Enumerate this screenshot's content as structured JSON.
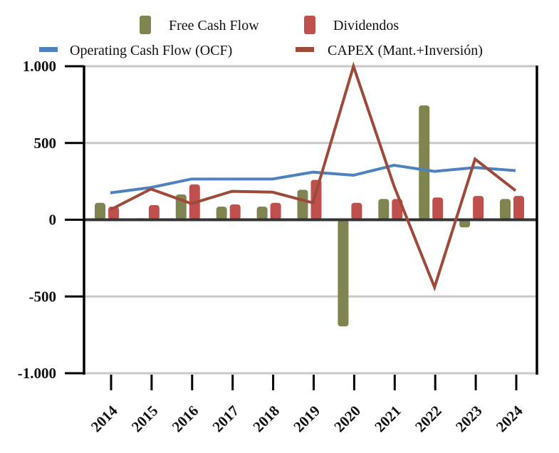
{
  "chart_data": {
    "type": "bar",
    "title": "",
    "xlabel": "",
    "ylabel": "",
    "ylim": [
      -1000,
      1000
    ],
    "yticks": [
      1000,
      500,
      0,
      -500,
      -1000
    ],
    "ytick_labels": [
      "1.000",
      "500",
      "0",
      "-500",
      "-1.000"
    ],
    "grid": true,
    "legend_position": "top",
    "categories": [
      "2014",
      "2015",
      "2016",
      "2017",
      "2018",
      "2019",
      "2020",
      "2021",
      "2022",
      "2023",
      "2024"
    ],
    "series": [
      {
        "name": "Free Cash Flow",
        "kind": "bar",
        "color": "#7f8450",
        "values": [
          110,
          10,
          165,
          85,
          85,
          195,
          -695,
          135,
          745,
          -50,
          135
        ]
      },
      {
        "name": "Dividendos",
        "kind": "bar",
        "color": "#c0504d",
        "values": [
          85,
          95,
          230,
          100,
          110,
          260,
          110,
          135,
          145,
          155,
          155
        ]
      },
      {
        "name": "Operating Cash Flow (OCF)",
        "kind": "line",
        "color": "#4f81bd",
        "values": [
          175,
          210,
          265,
          265,
          265,
          310,
          290,
          355,
          315,
          340,
          320
        ]
      },
      {
        "name": "CAPEX (Mant.+Inversión)",
        "kind": "line",
        "color": "#9c4a3a",
        "values": [
          65,
          200,
          105,
          185,
          180,
          110,
          1000,
          220,
          -440,
          395,
          190
        ]
      }
    ]
  }
}
